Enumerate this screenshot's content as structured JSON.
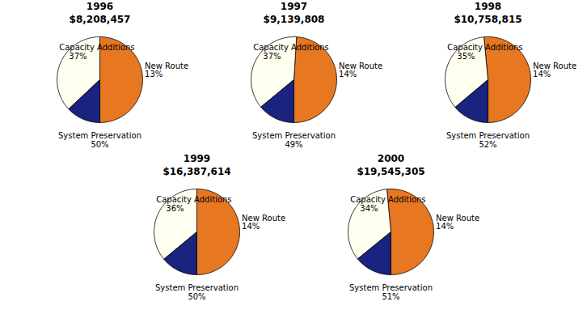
{
  "chart_data": [
    {
      "type": "pie",
      "title": "1996",
      "subtitle": "$8,208,457",
      "categories": [
        "System Preservation",
        "Capacity Additions",
        "New Route"
      ],
      "values": [
        50,
        37,
        13
      ],
      "value_labels": [
        "50%",
        "37%",
        "13%"
      ],
      "colors": [
        "#E87722",
        "#FFFFF0",
        "#1a237e"
      ],
      "data_labels": true
    },
    {
      "type": "pie",
      "title": "1997",
      "subtitle": "$9,139,808",
      "categories": [
        "System Preservation",
        "Capacity Additions",
        "New Route"
      ],
      "values": [
        49,
        37,
        14
      ],
      "value_labels": [
        "49%",
        "37%",
        "14%"
      ],
      "colors": [
        "#E87722",
        "#FFFFF0",
        "#1a237e"
      ],
      "data_labels": true
    },
    {
      "type": "pie",
      "title": "1998",
      "subtitle": "$10,758,815",
      "categories": [
        "System Preservation",
        "Capacity Additions",
        "New Route"
      ],
      "values": [
        52,
        35,
        14
      ],
      "value_labels": [
        "52%",
        "35%",
        "14%"
      ],
      "colors": [
        "#E87722",
        "#FFFFF0",
        "#1a237e"
      ],
      "data_labels": true
    },
    {
      "type": "pie",
      "title": "1999",
      "subtitle": "$16,387,614",
      "categories": [
        "System Preservation",
        "Capacity Additions",
        "New Route"
      ],
      "values": [
        50,
        36,
        14
      ],
      "value_labels": [
        "50%",
        "36%",
        "14%"
      ],
      "colors": [
        "#E87722",
        "#FFFFF0",
        "#1a237e"
      ],
      "data_labels": true
    },
    {
      "type": "pie",
      "title": "2000",
      "subtitle": "$19,545,305",
      "categories": [
        "System Preservation",
        "Capacity Additions",
        "New Route"
      ],
      "values": [
        51,
        34,
        14
      ],
      "value_labels": [
        "51%",
        "34%",
        "14%"
      ],
      "colors": [
        "#E87722",
        "#FFFFF0",
        "#1a237e"
      ],
      "data_labels": true
    }
  ]
}
